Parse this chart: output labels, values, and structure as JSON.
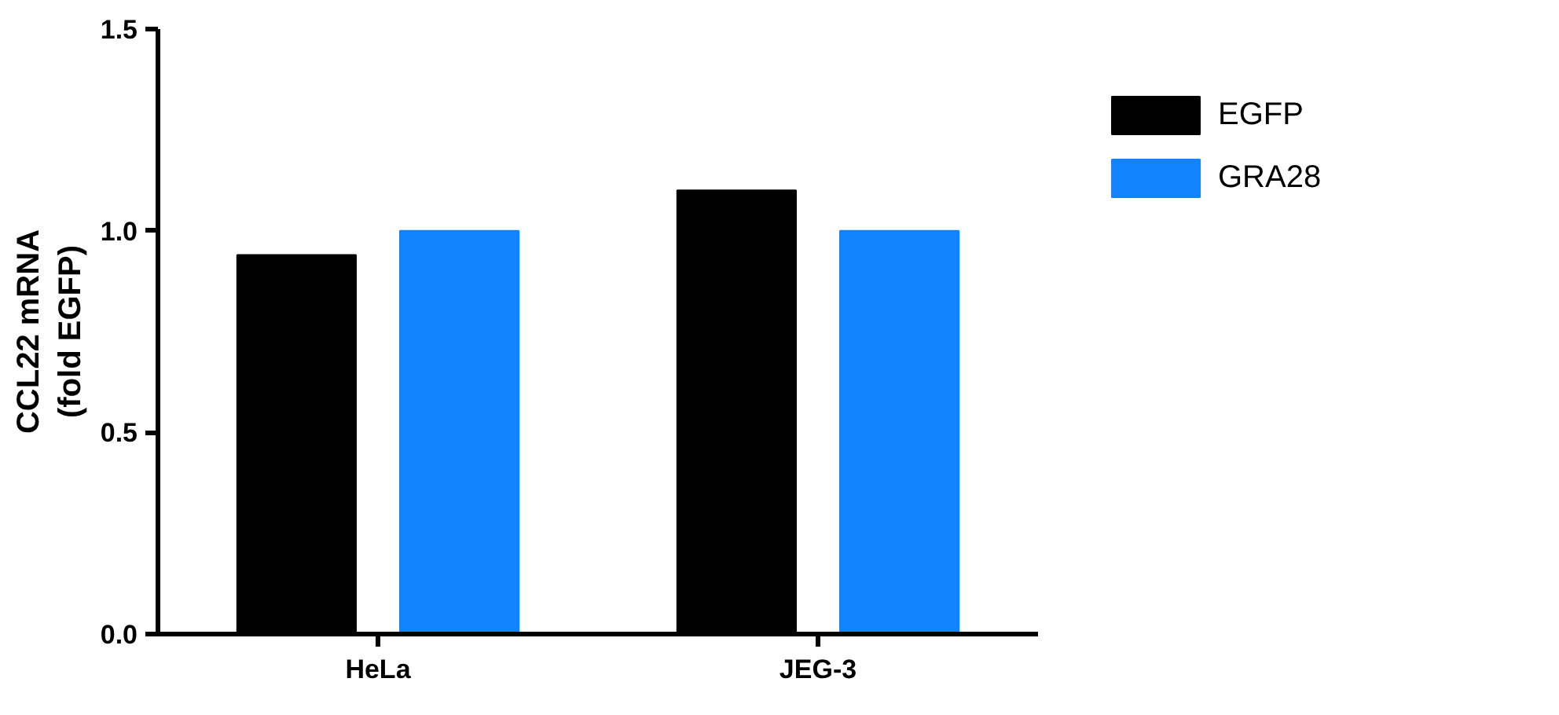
{
  "chart_data": {
    "type": "bar",
    "ylabel": "CCL22 mRNA\n(fold EGFP)",
    "categories": [
      "HeLa",
      "JEG-3"
    ],
    "series": [
      {
        "name": "EGFP",
        "color": "#000000",
        "values": [
          0.94,
          1.1
        ]
      },
      {
        "name": "GRA28",
        "color": "#1283fc",
        "values": [
          1.0,
          1.0
        ]
      }
    ],
    "ylim": [
      0,
      1.5
    ],
    "yticks": [
      {
        "value": 0,
        "label": "0.0"
      },
      {
        "value": 0.5,
        "label": "0.5"
      },
      {
        "value": 1,
        "label": "1.0"
      },
      {
        "value": 1.5,
        "label": "1.5"
      }
    ],
    "grid": false,
    "legend": "top right"
  }
}
